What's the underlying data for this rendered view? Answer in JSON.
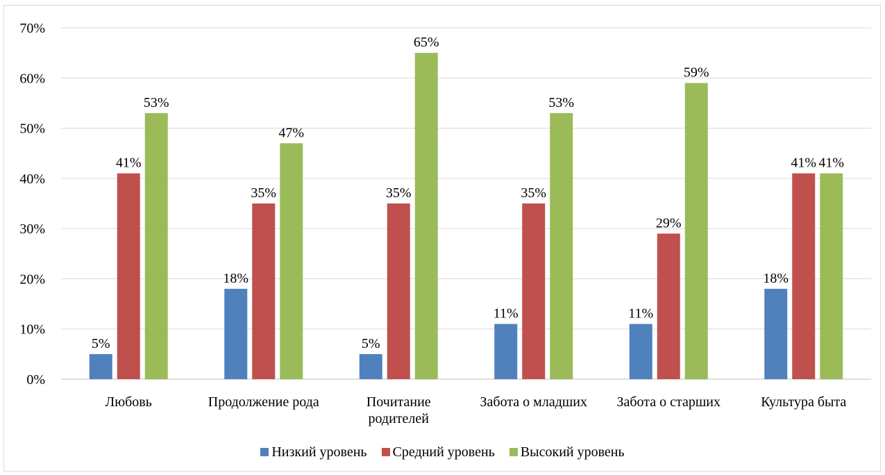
{
  "chart_data": {
    "type": "bar",
    "categories": [
      [
        "Любовь"
      ],
      [
        "Продолжение рода"
      ],
      [
        "Почитание",
        "родителей"
      ],
      [
        "Забота о младших"
      ],
      [
        "Забота о старших"
      ],
      [
        "Культура быта"
      ]
    ],
    "series": [
      {
        "name": "Низкий уровень",
        "color": "#4f81bd",
        "values": [
          5,
          18,
          5,
          11,
          11,
          18
        ]
      },
      {
        "name": "Средний уровень",
        "color": "#c0504d",
        "values": [
          41,
          35,
          35,
          35,
          29,
          41
        ]
      },
      {
        "name": "Высокий уровень",
        "color": "#9bbb59",
        "values": [
          53,
          47,
          65,
          53,
          59,
          41
        ]
      }
    ],
    "yticks": [
      "0%",
      "10%",
      "20%",
      "30%",
      "40%",
      "50%",
      "60%",
      "70%"
    ],
    "ylim": [
      0,
      70
    ],
    "value_suffix": "%",
    "grid": true,
    "legend_position": "bottom"
  }
}
